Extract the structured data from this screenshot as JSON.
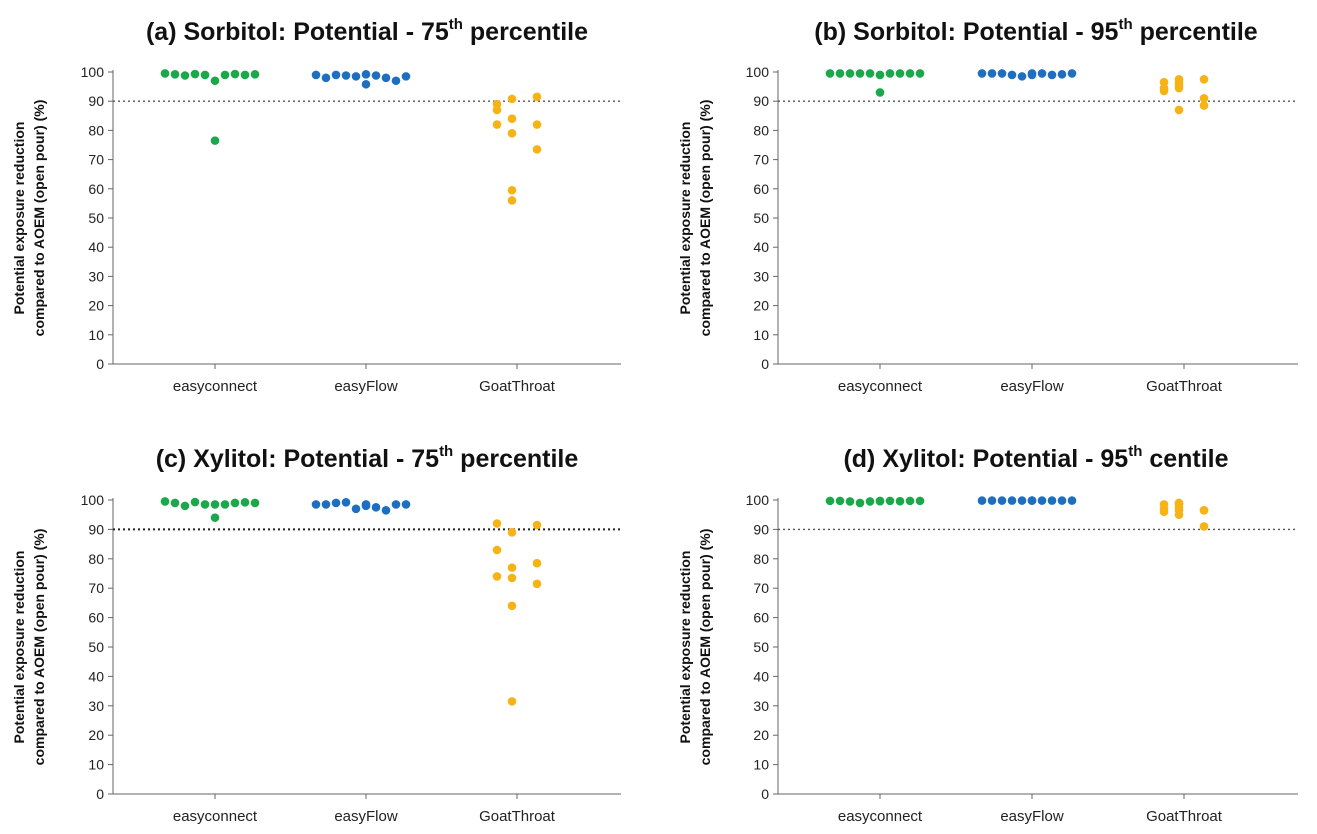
{
  "chart_data": [
    {
      "type": "scatter",
      "panel": "a",
      "title_main": "(a) Sorbitol: Potential - 75",
      "title_sup": "th",
      "title_end": " percentile",
      "ylabel_line1": "Potential exposure reduction",
      "ylabel_line2": "compared to AOEM (open pour) (%)",
      "categories": [
        "easyconnect",
        "easyFlow",
        "GoatThroat"
      ],
      "ylim": [
        0,
        100
      ],
      "yticks": [
        0,
        10,
        20,
        30,
        40,
        50,
        60,
        70,
        80,
        90,
        100
      ],
      "reference_line": 90,
      "series": [
        {
          "color": "#1aa84a",
          "values": [
            99.5,
            99.2,
            98.8,
            99.3,
            99.0,
            97.0,
            99.0,
            99.3,
            99.0,
            99.2,
            76.5
          ]
        },
        {
          "color": "#1f6fc0",
          "values": [
            99.0,
            98.0,
            99.0,
            98.8,
            98.5,
            95.8,
            98.8,
            98.0,
            97.0,
            98.5,
            99.2
          ]
        },
        {
          "color": "#f6b315",
          "values": [
            89.0,
            90.8,
            91.5,
            87.0,
            84.0,
            82.0,
            82.0,
            79.0,
            73.5,
            59.5,
            56.0
          ]
        }
      ]
    },
    {
      "type": "scatter",
      "panel": "b",
      "title_main": "(b) Sorbitol: Potential - 95",
      "title_sup": "th",
      "title_end": " percentile",
      "ylabel_line1": "Potential exposure reduction",
      "ylabel_line2": "compared to AOEM (open pour) (%)",
      "categories": [
        "easyconnect",
        "easyFlow",
        "GoatThroat"
      ],
      "ylim": [
        0,
        100
      ],
      "yticks": [
        0,
        10,
        20,
        30,
        40,
        50,
        60,
        70,
        80,
        90,
        100
      ],
      "reference_line": 90,
      "series": [
        {
          "color": "#1aa84a",
          "values": [
            99.5,
            99.5,
            99.5,
            99.5,
            99.5,
            99.0,
            99.5,
            99.5,
            99.5,
            99.5,
            93.0
          ]
        },
        {
          "color": "#1f6fc0",
          "values": [
            99.5,
            99.5,
            99.5,
            99.0,
            98.5,
            99.0,
            99.5,
            99.0,
            99.2,
            99.5,
            99.5
          ]
        },
        {
          "color": "#f6b315",
          "values": [
            96.5,
            96.5,
            97.5,
            93.5,
            95.5,
            91.0,
            94.5,
            87.0,
            88.5,
            94.5,
            97.5
          ]
        }
      ]
    },
    {
      "type": "scatter",
      "panel": "c",
      "title_main": "(c) Xylitol: Potential - 75",
      "title_sup": "th",
      "title_end": " percentile",
      "ylabel_line1": "Potential exposure reduction",
      "ylabel_line2": "compared to AOEM (open pour) (%)",
      "categories": [
        "easyconnect",
        "easyFlow",
        "GoatThroat"
      ],
      "ylim": [
        0,
        100
      ],
      "yticks": [
        0,
        10,
        20,
        30,
        40,
        50,
        60,
        70,
        80,
        90,
        100
      ],
      "reference_line": 90,
      "series": [
        {
          "color": "#1aa84a",
          "values": [
            99.5,
            99.0,
            98.0,
            99.3,
            98.5,
            94.0,
            98.5,
            99.0,
            99.2,
            99.0,
            98.5
          ]
        },
        {
          "color": "#1f6fc0",
          "values": [
            98.5,
            98.5,
            99.0,
            99.2,
            97.0,
            98.0,
            97.5,
            96.5,
            98.5,
            98.5,
            98.5
          ]
        },
        {
          "color": "#f6b315",
          "values": [
            92.0,
            89.0,
            91.5,
            83.0,
            77.0,
            78.5,
            74.0,
            73.5,
            71.5,
            64.0,
            31.5
          ]
        }
      ]
    },
    {
      "type": "scatter",
      "panel": "d",
      "title_main": "(d) Xylitol: Potential - 95",
      "title_sup": "th",
      "title_end": " centile",
      "ylabel_line1": "Potential exposure reduction",
      "ylabel_line2": "compared to AOEM (open pour) (%)",
      "categories": [
        "easyconnect",
        "easyFlow",
        "GoatThroat"
      ],
      "ylim": [
        0,
        100
      ],
      "yticks": [
        0,
        10,
        20,
        30,
        40,
        50,
        60,
        70,
        80,
        90,
        100
      ],
      "reference_line": 90,
      "series": [
        {
          "color": "#1aa84a",
          "values": [
            99.7,
            99.7,
            99.5,
            99.0,
            99.5,
            99.6,
            99.7,
            99.6,
            99.7,
            99.7,
            99.7
          ]
        },
        {
          "color": "#1f6fc0",
          "values": [
            99.8,
            99.8,
            99.8,
            99.8,
            99.8,
            99.8,
            99.8,
            99.8,
            99.8,
            99.8,
            99.8
          ]
        },
        {
          "color": "#f6b315",
          "values": [
            97.0,
            97.5,
            96.5,
            96.0,
            96.5,
            91.0,
            98.5,
            95.0,
            96.5,
            98.5,
            99.0
          ]
        }
      ]
    }
  ]
}
